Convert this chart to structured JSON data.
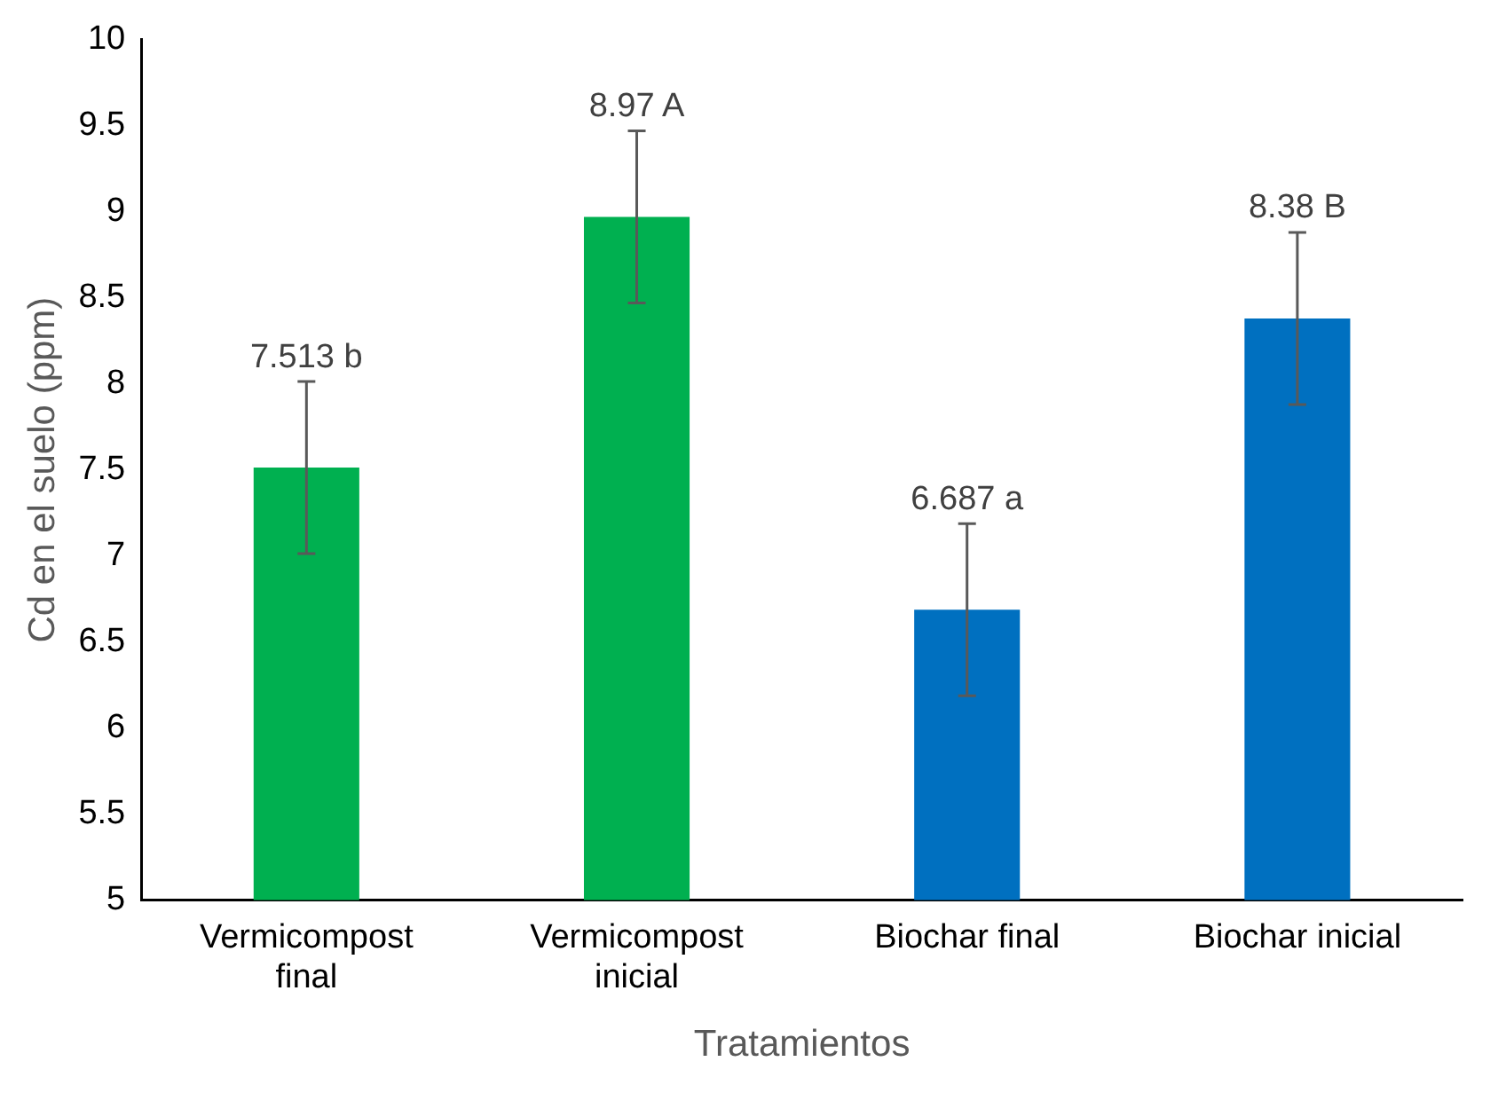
{
  "chart_data": {
    "type": "bar",
    "xlabel": "Tratamientos",
    "ylabel": "Cd en el suelo (ppm)",
    "categories": [
      "Vermicompost final",
      "Vermicompost inicial",
      "Biochar final",
      "Biochar inicial"
    ],
    "values": [
      7.513,
      8.97,
      6.687,
      8.38
    ],
    "colors": [
      "#00b050",
      "#00b050",
      "#0070c0",
      "#0070c0"
    ],
    "errors": [
      0.5,
      0.5,
      0.5,
      0.5
    ],
    "value_labels": [
      "7.513 b",
      "8.97 A",
      "6.687 a",
      "8.38 B"
    ],
    "ylim": [
      5,
      10
    ],
    "yticks": [
      5,
      5.5,
      6,
      6.5,
      7,
      7.5,
      8,
      8.5,
      9,
      9.5,
      10
    ],
    "grid": false,
    "legend": false
  }
}
